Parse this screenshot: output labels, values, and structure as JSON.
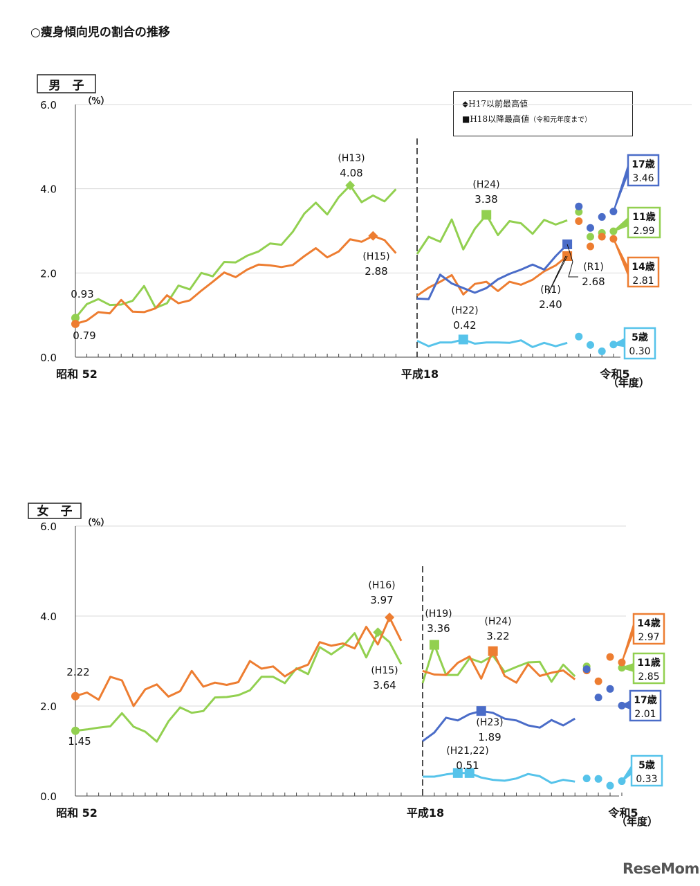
{
  "page_title": "○痩身傾向児の割合の推移",
  "watermark": "ReseMom",
  "legend": {
    "diamond_label": "◆H17以前最高値",
    "square_label": "■H18以降最高値",
    "square_note": "（令和元年度まで）"
  },
  "colors": {
    "5歳": "#56c3ea",
    "11歳": "#92d050",
    "14歳": "#ed7d31",
    "17歳": "#4a6cc8"
  },
  "chart_data": [
    {
      "type": "line",
      "title": "男　子",
      "ylabel": "（%）",
      "ylim": [
        0,
        6
      ],
      "yticks": [
        "0.0",
        "2.0",
        "4.0",
        "6.0"
      ],
      "x_start_year": "昭和 52",
      "x_mid_label": "平成18",
      "x_end_label": "令和5",
      "x_unit": "（年度）",
      "grid": "horizontal",
      "years_pre": [
        1977,
        1978,
        1979,
        1980,
        1981,
        1982,
        1983,
        1984,
        1985,
        1986,
        1987,
        1988,
        1989,
        1990,
        1991,
        1992,
        1993,
        1994,
        1995,
        1996,
        1997,
        1998,
        1999,
        2000,
        2001,
        2002,
        2003,
        2004,
        2005
      ],
      "years_post": [
        2006,
        2007,
        2008,
        2009,
        2010,
        2011,
        2012,
        2013,
        2014,
        2015,
        2016,
        2017,
        2018,
        2019,
        2020,
        2021,
        2022,
        2023
      ],
      "series": [
        {
          "name": "11歳",
          "pre": [
            0.93,
            1.26,
            1.38,
            1.24,
            1.25,
            1.34,
            1.69,
            1.17,
            1.28,
            1.7,
            1.61,
            2.0,
            1.92,
            2.26,
            2.25,
            2.41,
            2.51,
            2.7,
            2.67,
            2.98,
            3.41,
            3.67,
            3.39,
            3.8,
            4.08,
            3.68,
            3.84,
            3.7,
            3.99
          ],
          "post": [
            2.45,
            2.86,
            2.74,
            3.27,
            2.56,
            3.05,
            3.38,
            2.9,
            3.23,
            3.18,
            2.93,
            3.26,
            3.15,
            3.25,
            3.45,
            2.86,
            2.95,
            2.99
          ]
        },
        {
          "name": "14歳",
          "pre": [
            0.79,
            0.87,
            1.07,
            1.04,
            1.36,
            1.08,
            1.07,
            1.16,
            1.47,
            1.28,
            1.35,
            1.58,
            1.79,
            2.01,
            1.9,
            2.08,
            2.2,
            2.18,
            2.14,
            2.19,
            2.4,
            2.59,
            2.37,
            2.51,
            2.8,
            2.74,
            2.88,
            2.78,
            2.47
          ],
          "post": [
            1.46,
            1.65,
            1.79,
            1.95,
            1.49,
            1.74,
            1.79,
            1.57,
            1.79,
            1.72,
            1.84,
            2.04,
            2.18,
            2.4,
            3.23,
            2.63,
            2.86,
            2.81
          ]
        },
        {
          "name": "17歳",
          "pre": [],
          "post": [
            1.39,
            1.38,
            1.96,
            1.75,
            1.64,
            1.53,
            1.64,
            1.85,
            1.98,
            2.08,
            2.2,
            2.08,
            2.4,
            2.68,
            3.58,
            3.07,
            3.33,
            3.46
          ]
        },
        {
          "name": "5歳",
          "pre": [],
          "post": [
            0.39,
            0.26,
            0.35,
            0.35,
            0.42,
            0.32,
            0.35,
            0.35,
            0.34,
            0.4,
            0.24,
            0.34,
            0.26,
            0.34,
            0.49,
            0.29,
            0.14,
            0.3
          ]
        }
      ],
      "annotations": [
        {
          "period": "(H13)",
          "value": "4.08",
          "series": "11歳",
          "year": 2001,
          "marker": "diamond"
        },
        {
          "period": "(H15)",
          "value": "2.88",
          "series": "14歳",
          "year": 2003,
          "marker": "diamond"
        },
        {
          "period": "",
          "value": "0.93",
          "series": "11歳",
          "year": 1977,
          "marker": "circle"
        },
        {
          "period": "",
          "value": "0.79",
          "series": "14歳",
          "year": 1977,
          "marker": "circle"
        },
        {
          "period": "(H24)",
          "value": "3.38",
          "series": "11歳",
          "year": 2012,
          "marker": "square"
        },
        {
          "period": "(H22)",
          "value": "0.42",
          "series": "5歳",
          "year": 2010,
          "marker": "square"
        },
        {
          "period": "(R1)",
          "value": "2.40",
          "series": "14歳",
          "year": 2019,
          "marker": "square"
        },
        {
          "period": "(R1)",
          "value": "2.68",
          "series": "17歳",
          "year": 2019,
          "marker": "square"
        }
      ],
      "callouts": [
        {
          "series": "17歳",
          "label": "17歳",
          "value": "3.46"
        },
        {
          "series": "11歳",
          "label": "11歳",
          "value": "2.99"
        },
        {
          "series": "14歳",
          "label": "14歳",
          "value": "2.81"
        },
        {
          "series": "5歳",
          "label": "5歳",
          "value": "0.30"
        }
      ]
    },
    {
      "type": "line",
      "title": "女　子",
      "ylabel": "（%）",
      "ylim": [
        0,
        6
      ],
      "yticks": [
        "0.0",
        "2.0",
        "4.0",
        "6.0"
      ],
      "x_start_year": "昭和 52",
      "x_mid_label": "平成18",
      "x_end_label": "令和5",
      "x_unit": "（年度）",
      "grid": "horizontal",
      "years_pre": [
        1977,
        1978,
        1979,
        1980,
        1981,
        1982,
        1983,
        1984,
        1985,
        1986,
        1987,
        1988,
        1989,
        1990,
        1991,
        1992,
        1993,
        1994,
        1995,
        1996,
        1997,
        1998,
        1999,
        2000,
        2001,
        2002,
        2003,
        2004,
        2005
      ],
      "years_post": [
        2006,
        2007,
        2008,
        2009,
        2010,
        2011,
        2012,
        2013,
        2014,
        2015,
        2016,
        2017,
        2018,
        2019,
        2020,
        2021,
        2022,
        2023
      ],
      "series": [
        {
          "name": "11歳",
          "pre": [
            1.45,
            1.48,
            1.52,
            1.55,
            1.84,
            1.54,
            1.43,
            1.21,
            1.66,
            1.97,
            1.85,
            1.89,
            2.19,
            2.2,
            2.24,
            2.35,
            2.65,
            2.65,
            2.51,
            2.84,
            2.71,
            3.31,
            3.15,
            3.33,
            3.62,
            3.08,
            3.64,
            3.42,
            2.93
          ],
          "post": [
            2.51,
            3.36,
            2.69,
            2.69,
            3.06,
            2.97,
            3.12,
            2.76,
            2.87,
            2.97,
            2.98,
            2.54,
            2.92,
            2.66,
            2.88,
            null,
            null,
            2.85
          ]
        },
        {
          "name": "14歳",
          "pre": [
            2.22,
            2.3,
            2.14,
            2.65,
            2.57,
            2.0,
            2.37,
            2.48,
            2.21,
            2.33,
            2.78,
            2.43,
            2.52,
            2.47,
            2.53,
            3.0,
            2.83,
            2.88,
            2.66,
            2.82,
            2.92,
            3.42,
            3.34,
            3.39,
            3.28,
            3.76,
            3.37,
            3.97,
            3.45
          ],
          "post": [
            2.78,
            2.7,
            2.69,
            2.96,
            3.1,
            2.61,
            3.22,
            2.67,
            2.52,
            2.93,
            2.67,
            2.74,
            2.79,
            2.59,
            2.79,
            2.55,
            3.09,
            2.97
          ]
        },
        {
          "name": "17歳",
          "pre": [],
          "post": [
            1.22,
            1.41,
            1.74,
            1.68,
            1.82,
            1.89,
            1.85,
            1.72,
            1.68,
            1.57,
            1.52,
            1.69,
            1.57,
            1.72,
            2.82,
            2.19,
            2.38,
            2.01
          ]
        },
        {
          "name": "5歳",
          "pre": [],
          "post": [
            0.43,
            0.43,
            0.48,
            0.51,
            0.51,
            0.41,
            0.36,
            0.34,
            0.39,
            0.49,
            0.44,
            0.29,
            0.36,
            0.32,
            0.39,
            0.38,
            0.23,
            0.33
          ]
        }
      ],
      "annotations": [
        {
          "period": "(H16)",
          "value": "3.97",
          "series": "14歳",
          "year": 2004,
          "marker": "diamond"
        },
        {
          "period": "(H15)",
          "value": "3.64",
          "series": "11歳",
          "year": 2003,
          "marker": "diamond"
        },
        {
          "period": "",
          "value": "2.22",
          "series": "14歳",
          "year": 1977,
          "marker": "circle"
        },
        {
          "period": "",
          "value": "1.45",
          "series": "11歳",
          "year": 1977,
          "marker": "circle"
        },
        {
          "period": "(H19)",
          "value": "3.36",
          "series": "11歳",
          "year": 2007,
          "marker": "square"
        },
        {
          "period": "(H24)",
          "value": "3.22",
          "series": "14歳",
          "year": 2012,
          "marker": "square"
        },
        {
          "period": "(H23)",
          "value": "1.89",
          "series": "17歳",
          "year": 2011,
          "marker": "square"
        },
        {
          "period": "(H21,22)",
          "value": "0.51",
          "series": "5歳",
          "year": 2009,
          "marker": "square",
          "also_year": 2010
        }
      ],
      "callouts": [
        {
          "series": "14歳",
          "label": "14歳",
          "value": "2.97"
        },
        {
          "series": "11歳",
          "label": "11歳",
          "value": "2.85"
        },
        {
          "series": "17歳",
          "label": "17歳",
          "value": "2.01"
        },
        {
          "series": "5歳",
          "label": "5歳",
          "value": "0.33"
        }
      ]
    }
  ]
}
